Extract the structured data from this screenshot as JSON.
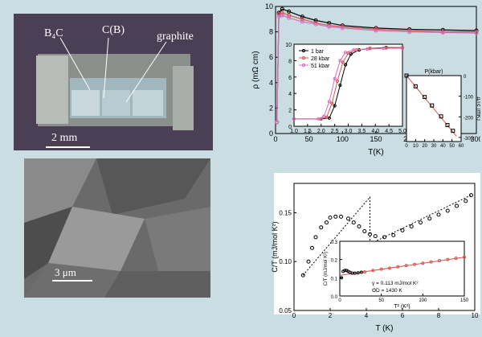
{
  "photo": {
    "labels": [
      "B₄C",
      "C(B)",
      "graphite"
    ],
    "scalebar": "2 mm"
  },
  "sem": {
    "scalebar": "3 μm"
  },
  "chart_data": [
    {
      "type": "line",
      "xlabel": "T(K)",
      "ylabel": "ρ (mΩ cm)",
      "xlim": [
        0,
        300
      ],
      "ylim": [
        0,
        10
      ],
      "xticks": [
        "0",
        "50",
        "100",
        "150",
        "200",
        "250",
        "300"
      ],
      "yticks": [
        "0",
        "2",
        "4",
        "6",
        "8",
        "10"
      ],
      "series": [
        {
          "name": "1 bar",
          "color": "#000000",
          "x": [
            2,
            5,
            10,
            20,
            40,
            60,
            80,
            100,
            150,
            200,
            250,
            300
          ],
          "y": [
            0.9,
            9.5,
            9.8,
            9.6,
            9.2,
            8.9,
            8.7,
            8.5,
            8.3,
            8.2,
            8.15,
            8.1
          ]
        },
        {
          "name": "28 kbar",
          "color": "#d9534f",
          "x": [
            2,
            5,
            10,
            20,
            40,
            60,
            80,
            100,
            150,
            200,
            250,
            300
          ],
          "y": [
            0.9,
            9.4,
            9.5,
            9.3,
            9.0,
            8.7,
            8.5,
            8.4,
            8.2,
            8.1,
            8.0,
            8.0
          ]
        },
        {
          "name": "51 kbar",
          "color": "#d46fc0",
          "x": [
            2,
            5,
            10,
            20,
            40,
            60,
            80,
            100,
            150,
            200,
            250,
            300
          ],
          "y": [
            0.9,
            9.2,
            9.3,
            9.1,
            8.8,
            8.6,
            8.4,
            8.3,
            8.1,
            8.0,
            7.95,
            7.9
          ]
        }
      ],
      "insets": [
        {
          "type": "line",
          "xlim": [
            1.0,
            5.0
          ],
          "ylim": [
            0,
            10
          ],
          "xticks": [
            "1.0",
            "1.5",
            "2.0",
            "2.5",
            "3.0",
            "3.5",
            "4.0",
            "4.5",
            "5.0"
          ],
          "yticks": [
            "0",
            "2",
            "4",
            "6",
            "8",
            "10"
          ],
          "legend": [
            "1 bar",
            "28 kbar",
            "51 kbar"
          ],
          "series": [
            {
              "name": "1 bar",
              "color": "#000000",
              "x": [
                1.0,
                2.0,
                2.3,
                2.5,
                2.7,
                2.9,
                3.1,
                3.4,
                3.8,
                4.4,
                5.0
              ],
              "y": [
                0.9,
                0.9,
                1.0,
                2.5,
                5.0,
                7.5,
                8.8,
                9.3,
                9.5,
                9.6,
                9.6
              ]
            },
            {
              "name": "28 kbar",
              "color": "#d9534f",
              "x": [
                1.0,
                2.0,
                2.2,
                2.4,
                2.6,
                2.8,
                3.0,
                3.3,
                3.8,
                4.4,
                5.0
              ],
              "y": [
                0.9,
                0.9,
                1.1,
                2.8,
                5.5,
                7.8,
                8.9,
                9.3,
                9.5,
                9.55,
                9.6
              ]
            },
            {
              "name": "51 kbar",
              "color": "#d46fc0",
              "x": [
                1.0,
                1.9,
                2.1,
                2.3,
                2.5,
                2.7,
                2.9,
                3.2,
                3.7,
                4.3,
                5.0
              ],
              "y": [
                0.9,
                0.9,
                1.2,
                3.0,
                5.8,
                8.0,
                9.0,
                9.3,
                9.4,
                9.5,
                9.5
              ]
            }
          ]
        },
        {
          "type": "scatter",
          "xlabel": "P(kbar)",
          "ylabel": "ΔTᴄ (mK)",
          "xlim": [
            0,
            60
          ],
          "ylim": [
            -320,
            0
          ],
          "xticks": [
            "0",
            "10",
            "20",
            "30",
            "40",
            "50",
            "60"
          ],
          "yticks": [
            "0",
            "-100",
            "-200",
            "-300"
          ],
          "x": [
            0,
            10,
            20,
            28,
            38,
            45,
            51
          ],
          "y": [
            0,
            -52,
            -104,
            -145,
            -198,
            -240,
            -268
          ]
        }
      ]
    },
    {
      "type": "scatter",
      "xlabel": "T (K)",
      "ylabel": "C/T (mJ/mol K²)",
      "xlim": [
        0,
        10
      ],
      "ylim": [
        0.05,
        0.18
      ],
      "xticks": [
        "0",
        "2",
        "4",
        "6",
        "8",
        "10"
      ],
      "yticks": [
        "0.05",
        "0.10",
        "0.15"
      ],
      "x": [
        0.5,
        0.8,
        1.0,
        1.2,
        1.5,
        1.8,
        2.0,
        2.3,
        2.6,
        3.0,
        3.3,
        3.6,
        3.9,
        4.2,
        4.5,
        5.0,
        5.5,
        6.0,
        6.5,
        7.0,
        7.5,
        8.0,
        8.5,
        9.0,
        9.5,
        9.8
      ],
      "y": [
        0.086,
        0.1,
        0.114,
        0.125,
        0.135,
        0.14,
        0.145,
        0.146,
        0.146,
        0.144,
        0.14,
        0.136,
        0.131,
        0.128,
        0.126,
        0.125,
        0.127,
        0.132,
        0.136,
        0.14,
        0.144,
        0.148,
        0.152,
        0.157,
        0.162,
        0.168
      ],
      "insets": [
        {
          "type": "scatter",
          "xlabel": "T² (K²)",
          "ylabel": "C/T (mJ/mol K²)",
          "xlim": [
            0,
            150
          ],
          "ylim": [
            0,
            0.3
          ],
          "xticks": [
            "0",
            "50",
            "100",
            "150"
          ],
          "yticks": [
            "0.0",
            "0.1",
            "0.2",
            "0.3"
          ],
          "x": [
            2,
            4,
            6,
            8,
            10,
            12,
            15,
            18,
            22,
            26,
            30,
            40,
            50,
            60,
            70,
            80,
            90,
            100,
            110,
            120,
            130,
            140,
            150
          ],
          "y": [
            0.1,
            0.135,
            0.14,
            0.14,
            0.135,
            0.13,
            0.126,
            0.125,
            0.127,
            0.13,
            0.132,
            0.14,
            0.147,
            0.153,
            0.16,
            0.167,
            0.173,
            0.18,
            0.187,
            0.194,
            0.2,
            0.207,
            0.213
          ],
          "annotations": [
            "γ = 0.113 mJ/mol K²",
            "ΘD = 1430 K"
          ]
        }
      ]
    }
  ]
}
